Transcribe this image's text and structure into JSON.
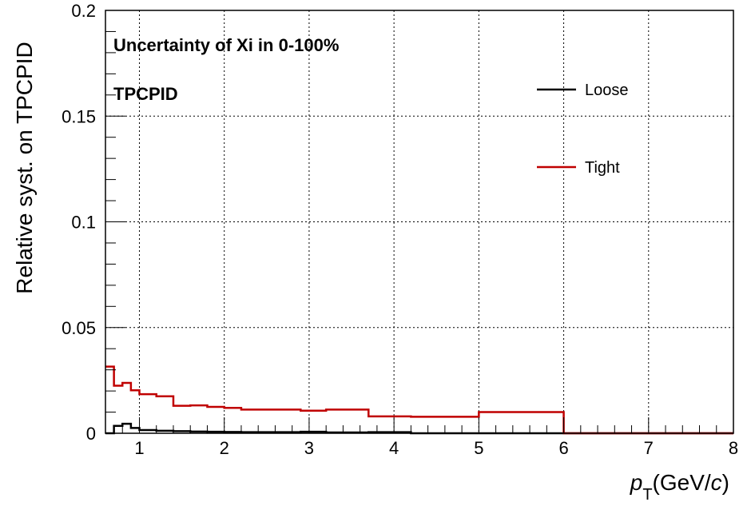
{
  "chart_data": {
    "type": "line",
    "ylabel": "Relative syst. on TPCPID",
    "xlabel": "p_T(GeV/c)",
    "xlabel_parts": {
      "p": "p",
      "sub": "T",
      "unit_open": "(GeV/",
      "c": "c",
      "unit_close": ")"
    },
    "annotations": [
      "Uncertainty of Xi in 0-100%",
      "TPCPID"
    ],
    "xlim": [
      0.6,
      8
    ],
    "ylim": [
      0,
      0.2
    ],
    "x_ticks": [
      1,
      2,
      3,
      4,
      5,
      6,
      7,
      8
    ],
    "x_tick_labels": [
      "1",
      "2",
      "3",
      "4",
      "5",
      "6",
      "7",
      "8"
    ],
    "y_ticks": [
      0,
      0.05,
      0.1,
      0.15,
      0.2
    ],
    "y_tick_labels": [
      "0",
      "0.05",
      "0.1",
      "0.15",
      "0.2"
    ],
    "grid": true,
    "legend_position": "top-right",
    "series": [
      {
        "name": "Loose",
        "color": "#000000",
        "bin_edges": [
          0.6,
          0.7,
          0.8,
          0.9,
          1.0,
          1.2,
          1.4,
          1.6,
          1.8,
          2.0,
          2.2,
          2.5,
          2.9,
          3.2,
          3.7,
          4.2,
          5.0,
          6.0,
          8.0
        ],
        "values": [
          0.0,
          0.0035,
          0.0045,
          0.0025,
          0.0015,
          0.0012,
          0.001,
          0.0008,
          0.0007,
          0.0006,
          0.0005,
          0.0005,
          0.0007,
          0.0004,
          0.0005,
          0.0,
          0.0,
          0.0
        ]
      },
      {
        "name": "Tight",
        "color": "#c00000",
        "bin_edges": [
          0.6,
          0.7,
          0.8,
          0.9,
          1.0,
          1.2,
          1.4,
          1.6,
          1.8,
          2.0,
          2.2,
          2.5,
          2.9,
          3.2,
          3.7,
          4.2,
          5.0,
          6.0,
          8.0
        ],
        "values": [
          0.0315,
          0.0225,
          0.0238,
          0.0203,
          0.0185,
          0.0175,
          0.013,
          0.0132,
          0.0125,
          0.012,
          0.0112,
          0.0112,
          0.0107,
          0.0112,
          0.008,
          0.0078,
          0.01,
          0.0
        ]
      }
    ]
  }
}
